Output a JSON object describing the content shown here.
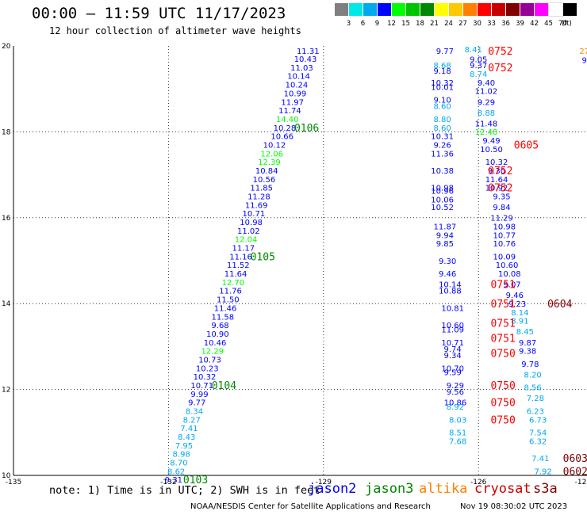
{
  "header": {
    "title": "00:00 – 11:59 UTC 11/17/2023",
    "subtitle": "12 hour collection of altimeter wave heights"
  },
  "legend": {
    "unit": "(ft)",
    "colors": [
      "#7f7f7f",
      "#00e8e8",
      "#00a8f0",
      "#0000ff",
      "#00ff00",
      "#00c400",
      "#008800",
      "#ffff00",
      "#ffc800",
      "#ff8000",
      "#ff0000",
      "#c80000",
      "#800000",
      "#960096",
      "#ff00ff",
      "#ffffff",
      "#000000"
    ],
    "labels": [
      "3",
      "6",
      "9",
      "12",
      "15",
      "18",
      "21",
      "24",
      "27",
      "30",
      "33",
      "36",
      "39",
      "42",
      "45",
      "70"
    ]
  },
  "footer": {
    "note": "note: 1) Time is in UTC; 2) SWH is in feet",
    "satellites": [
      {
        "name": "jason2",
        "color": "#0000ff"
      },
      {
        "name": "jason3",
        "color": "#008800"
      },
      {
        "name": "altika",
        "color": "#ff8000"
      },
      {
        "name": "cryosat",
        "color": "#c80000"
      },
      {
        "name": "s3a",
        "color": "#800000"
      }
    ],
    "credit": "NOAA/NESDIS Center for Satellite Applications and Research",
    "timestamp": "Nov 19 08:30:02 UTC 2023"
  },
  "chart_data": {
    "type": "scatter",
    "xlim": [
      -135,
      -123.9
    ],
    "ylim": [
      10,
      20
    ],
    "grid": true,
    "xticks": [
      "-135",
      "-132",
      "-129",
      "-126",
      "-123",
      "-12"
    ],
    "yticks": [
      "10",
      "12",
      "14",
      "16",
      "18",
      "20"
    ],
    "value_colors": {
      "6-9": "#00a8f0",
      "9-12": "#0000ff",
      "12-15": "#00ff00",
      "27-30": "#ff8000"
    },
    "tracks": [
      {
        "name": "track-1",
        "points": [
          [
            -129.3,
            19.82,
            "11.31"
          ],
          [
            -129.35,
            19.63,
            "10.43"
          ],
          [
            -129.42,
            19.43,
            "11.03"
          ],
          [
            -129.48,
            19.23,
            "10.14"
          ],
          [
            -129.52,
            19.03,
            "10.24"
          ],
          [
            -129.55,
            18.83,
            "10.99"
          ],
          [
            -129.6,
            18.63,
            "11.97"
          ],
          [
            -129.65,
            18.43,
            "11.74"
          ],
          [
            -129.7,
            18.23,
            "14.40"
          ],
          [
            -129.75,
            18.03,
            "10.28"
          ],
          [
            -129.8,
            17.83,
            "10.66"
          ],
          [
            -129.95,
            17.63,
            "10.12"
          ],
          [
            -130.0,
            17.43,
            "12.06"
          ],
          [
            -130.05,
            17.23,
            "12.39"
          ],
          [
            -130.1,
            17.03,
            "10.84"
          ],
          [
            -130.15,
            16.83,
            "10.56"
          ],
          [
            -130.2,
            16.63,
            "11.85"
          ],
          [
            -130.25,
            16.43,
            "11.28"
          ],
          [
            -130.3,
            16.23,
            "11.69"
          ],
          [
            -130.35,
            16.03,
            "10.71"
          ],
          [
            -130.4,
            15.83,
            "10.98"
          ],
          [
            -130.45,
            15.63,
            "11.02"
          ],
          [
            -130.5,
            15.43,
            "12.04"
          ],
          [
            -130.55,
            15.23,
            "11.17"
          ],
          [
            -130.6,
            15.03,
            "11.16"
          ],
          [
            -130.65,
            14.83,
            "11.52"
          ],
          [
            -130.7,
            14.63,
            "11.64"
          ],
          [
            -130.75,
            14.43,
            "12.70"
          ],
          [
            -130.8,
            14.23,
            "11.76"
          ],
          [
            -130.85,
            14.03,
            "11.50"
          ],
          [
            -130.9,
            13.83,
            "11.46"
          ],
          [
            -130.95,
            13.63,
            "11.58"
          ],
          [
            -131.0,
            13.43,
            "9.68"
          ],
          [
            -131.05,
            13.23,
            "10.90"
          ],
          [
            -131.1,
            13.03,
            "10.46"
          ],
          [
            -131.15,
            12.83,
            "12.29"
          ],
          [
            -131.2,
            12.63,
            "10.73"
          ],
          [
            -131.25,
            12.43,
            "10.23"
          ],
          [
            -131.3,
            12.23,
            "10.32"
          ],
          [
            -131.35,
            12.03,
            "10.71"
          ],
          [
            -131.4,
            11.83,
            "9.99"
          ],
          [
            -131.45,
            11.63,
            "9.77"
          ],
          [
            -131.5,
            11.43,
            "8.34"
          ],
          [
            -131.55,
            11.23,
            "8.27"
          ],
          [
            -131.6,
            11.03,
            "7.41"
          ],
          [
            -131.65,
            10.83,
            "8.43"
          ],
          [
            -131.7,
            10.63,
            "7.95"
          ],
          [
            -131.75,
            10.43,
            "8.98"
          ],
          [
            -131.8,
            10.23,
            "8.70"
          ],
          [
            -131.85,
            10.03,
            "8.62"
          ],
          [
            -131.9,
            9.83,
            "9.31"
          ]
        ],
        "times": [
          [
            -129.75,
            18.03,
            "0106"
          ],
          [
            -130.6,
            15.03,
            "0105"
          ],
          [
            -131.35,
            12.03,
            "0104"
          ],
          [
            -131.9,
            9.83,
            "0103"
          ]
        ]
      },
      {
        "name": "track-2",
        "points": [
          [
            -126.65,
            19.82,
            "9.77"
          ],
          [
            -126.1,
            19.85,
            "8.41"
          ],
          [
            -126.0,
            19.62,
            "9.05"
          ],
          [
            -126.7,
            19.48,
            "8.68"
          ],
          [
            -126.0,
            19.48,
            "9.37"
          ],
          [
            -126.7,
            19.35,
            "9.18"
          ],
          [
            -126.0,
            19.28,
            "8.74"
          ],
          [
            -126.7,
            19.08,
            "10.32"
          ],
          [
            -125.85,
            19.08,
            "9.40"
          ],
          [
            -126.7,
            18.98,
            "10.01"
          ],
          [
            -125.85,
            18.88,
            "11.02"
          ],
          [
            -126.7,
            18.68,
            "9.10"
          ],
          [
            -125.85,
            18.63,
            "9.29"
          ],
          [
            -126.7,
            18.53,
            "8.60"
          ],
          [
            -125.85,
            18.38,
            "8.88"
          ],
          [
            -126.7,
            18.23,
            "8.80"
          ],
          [
            -125.85,
            18.13,
            "11.48"
          ],
          [
            -126.7,
            18.03,
            "8.60"
          ],
          [
            -125.85,
            17.93,
            "12.48"
          ],
          [
            -126.7,
            17.83,
            "10.31"
          ],
          [
            -125.75,
            17.73,
            "9.49"
          ],
          [
            -126.7,
            17.63,
            "9.26"
          ],
          [
            -125.75,
            17.53,
            "10.50"
          ],
          [
            -126.7,
            17.43,
            "11.36"
          ],
          [
            -125.65,
            17.23,
            "10.32"
          ],
          [
            -126.7,
            17.03,
            "10.38"
          ],
          [
            -125.65,
            17.03,
            "9.30"
          ],
          [
            -125.65,
            16.83,
            "11.64"
          ],
          [
            -126.7,
            16.63,
            "10.98"
          ],
          [
            -125.65,
            16.63,
            "10.92"
          ],
          [
            -126.7,
            16.56,
            "10.96"
          ],
          [
            -126.7,
            16.36,
            "10.06"
          ],
          [
            -125.55,
            16.43,
            "9.35"
          ],
          [
            -126.7,
            16.18,
            "10.52"
          ],
          [
            -125.55,
            16.18,
            "9.84"
          ],
          [
            -125.55,
            15.93,
            "11.29"
          ],
          [
            -126.65,
            15.73,
            "11.87"
          ],
          [
            -125.5,
            15.73,
            "10.98"
          ],
          [
            -126.65,
            15.53,
            "9.94"
          ],
          [
            -125.5,
            15.53,
            "10.77"
          ],
          [
            -126.65,
            15.33,
            "9.85"
          ],
          [
            -125.5,
            15.33,
            "10.76"
          ],
          [
            -125.5,
            15.03,
            "10.09"
          ],
          [
            -126.6,
            14.93,
            "9.30"
          ],
          [
            -125.45,
            14.83,
            "10.60"
          ],
          [
            -126.6,
            14.63,
            "9.46"
          ],
          [
            -125.4,
            14.63,
            "10.08"
          ],
          [
            -126.55,
            14.38,
            "10.14"
          ],
          [
            -125.35,
            14.38,
            "9.07"
          ],
          [
            -126.55,
            14.23,
            "10.88"
          ],
          [
            -125.3,
            14.13,
            "9.46"
          ],
          [
            -125.25,
            13.93,
            "9.23"
          ],
          [
            -126.5,
            13.83,
            "10.81"
          ],
          [
            -125.2,
            13.73,
            "8.14"
          ],
          [
            -125.2,
            13.53,
            "8.91"
          ],
          [
            -126.5,
            13.43,
            "10.60"
          ],
          [
            -126.5,
            13.33,
            "11.09"
          ],
          [
            -125.1,
            13.28,
            "8.45"
          ],
          [
            -126.5,
            13.03,
            "10.71"
          ],
          [
            -125.05,
            13.03,
            "9.87"
          ],
          [
            -126.5,
            12.88,
            "9.74"
          ],
          [
            -125.05,
            12.83,
            "9.38"
          ],
          [
            -126.5,
            12.73,
            "9.34"
          ],
          [
            -125.0,
            12.53,
            "9.78"
          ],
          [
            -126.5,
            12.43,
            "10.70"
          ],
          [
            -126.5,
            12.33,
            "9.59"
          ],
          [
            -124.95,
            12.28,
            "8.20"
          ],
          [
            -126.45,
            12.03,
            "9.29"
          ],
          [
            -126.45,
            11.88,
            "9.56"
          ],
          [
            -124.95,
            11.98,
            "8.56"
          ],
          [
            -126.45,
            11.63,
            "10.86"
          ],
          [
            -124.9,
            11.73,
            "7.28"
          ],
          [
            -126.45,
            11.53,
            "8.92"
          ],
          [
            -124.9,
            11.43,
            "6.23"
          ],
          [
            -126.4,
            11.23,
            "8.03"
          ],
          [
            -124.85,
            11.23,
            "6.73"
          ],
          [
            -126.4,
            10.93,
            "8.51"
          ],
          [
            -124.85,
            10.93,
            "7.54"
          ],
          [
            -126.4,
            10.73,
            "7.68"
          ],
          [
            -124.85,
            10.73,
            "6.32"
          ],
          [
            -124.8,
            10.33,
            "7.41"
          ],
          [
            -124.75,
            10.03,
            "7.92"
          ]
        ],
        "times": [
          [
            -126.0,
            19.82,
            "0752"
          ],
          [
            -126.0,
            19.43,
            "0752"
          ],
          [
            -125.5,
            17.63,
            "0605"
          ],
          [
            -126.0,
            17.03,
            "0752"
          ],
          [
            -126.0,
            16.63,
            "0752"
          ],
          [
            -125.95,
            14.38,
            "0751"
          ],
          [
            -125.95,
            13.93,
            "0751"
          ],
          [
            -125.95,
            13.48,
            "0751"
          ],
          [
            -125.95,
            13.13,
            "0751"
          ],
          [
            -125.95,
            12.78,
            "0750"
          ],
          [
            -125.95,
            12.03,
            "0750"
          ],
          [
            -125.95,
            11.63,
            "0750"
          ],
          [
            -125.95,
            11.23,
            "0750"
          ],
          [
            -124.85,
            13.93,
            "0604"
          ],
          [
            -124.55,
            10.33,
            "0603"
          ],
          [
            -124.55,
            10.03,
            "0602"
          ]
        ]
      },
      {
        "name": "track-3",
        "points": [
          [
            -123.95,
            19.82,
            "27"
          ],
          [
            -123.95,
            19.6,
            "9"
          ]
        ],
        "times": []
      }
    ]
  }
}
